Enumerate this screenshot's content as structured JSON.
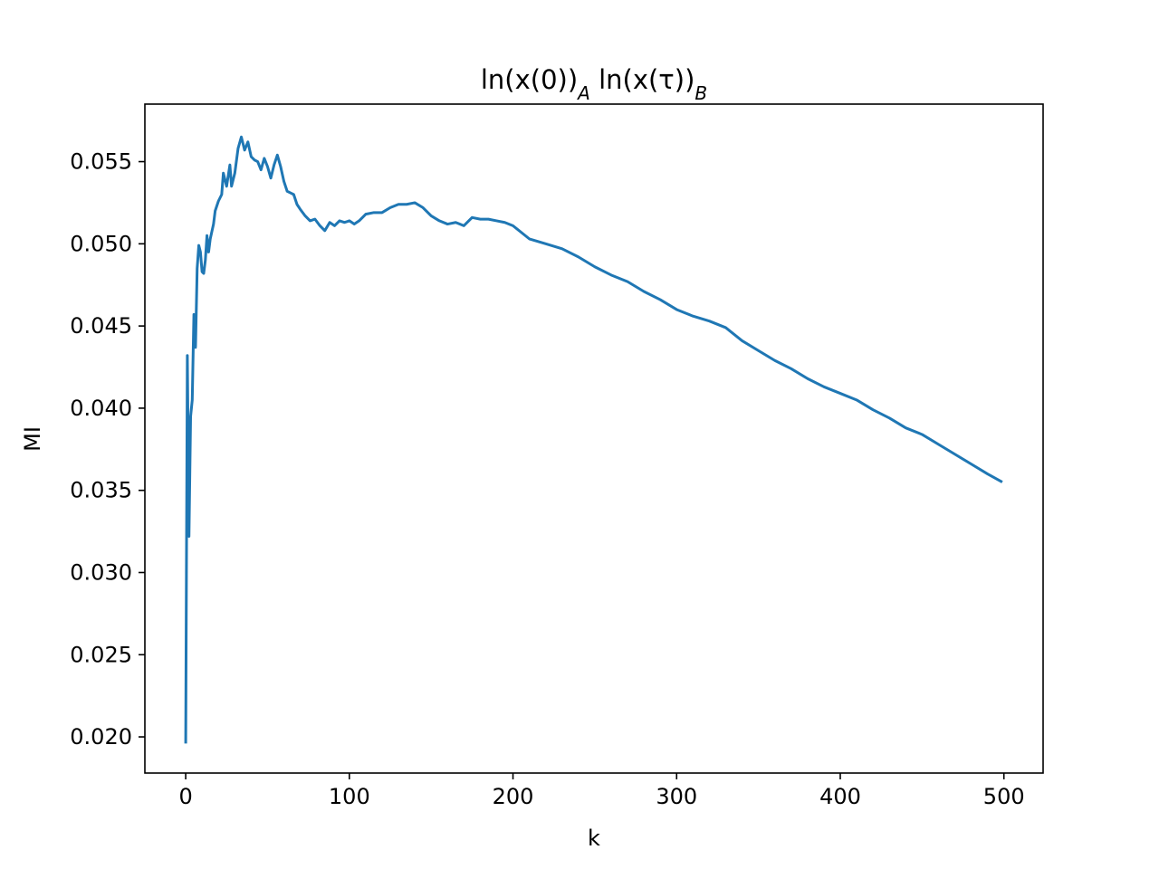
{
  "chart_data": {
    "type": "line",
    "title": [
      "ln(x(0))",
      "A",
      " ln(x(τ))",
      "B"
    ],
    "xlabel": "k",
    "ylabel": "MI",
    "color": "#1f77b4",
    "x": [
      0,
      1,
      2,
      3,
      4,
      5,
      6,
      7,
      8,
      9,
      10,
      11,
      12,
      13,
      14,
      15,
      17,
      18,
      20,
      22,
      23,
      25,
      27,
      28,
      30,
      32,
      34,
      36,
      38,
      40,
      42,
      44,
      46,
      48,
      50,
      52,
      54,
      56,
      58,
      60,
      62,
      64,
      66,
      68,
      70,
      73,
      76,
      79,
      82,
      85,
      88,
      91,
      94,
      97,
      100,
      103,
      106,
      110,
      115,
      120,
      125,
      130,
      135,
      140,
      145,
      150,
      155,
      160,
      165,
      170,
      175,
      180,
      185,
      190,
      195,
      200,
      205,
      210,
      220,
      230,
      240,
      250,
      260,
      270,
      280,
      290,
      300,
      310,
      320,
      330,
      340,
      350,
      360,
      370,
      380,
      390,
      400,
      410,
      420,
      430,
      440,
      450,
      460,
      470,
      480,
      490,
      499
    ],
    "values": [
      0.0196,
      0.0432,
      0.0322,
      0.0395,
      0.0405,
      0.0457,
      0.0437,
      0.0485,
      0.0499,
      0.0495,
      0.0483,
      0.0482,
      0.049,
      0.0505,
      0.0495,
      0.0503,
      0.0512,
      0.052,
      0.0526,
      0.053,
      0.0543,
      0.0535,
      0.0548,
      0.0535,
      0.0543,
      0.0558,
      0.0565,
      0.0557,
      0.0562,
      0.0553,
      0.0551,
      0.055,
      0.0545,
      0.0552,
      0.0547,
      0.054,
      0.0548,
      0.0554,
      0.0547,
      0.0538,
      0.0532,
      0.0531,
      0.053,
      0.0524,
      0.0521,
      0.0517,
      0.0514,
      0.0515,
      0.0511,
      0.0508,
      0.0513,
      0.0511,
      0.0514,
      0.0513,
      0.0514,
      0.0512,
      0.0514,
      0.0518,
      0.0519,
      0.0519,
      0.0522,
      0.0524,
      0.0524,
      0.0525,
      0.0522,
      0.0517,
      0.0514,
      0.0512,
      0.0513,
      0.0511,
      0.0516,
      0.0515,
      0.0515,
      0.0514,
      0.0513,
      0.0511,
      0.0507,
      0.0503,
      0.05,
      0.0497,
      0.0492,
      0.0486,
      0.0481,
      0.0477,
      0.0471,
      0.0466,
      0.046,
      0.0456,
      0.0453,
      0.0449,
      0.0441,
      0.0435,
      0.0429,
      0.0424,
      0.0418,
      0.0413,
      0.0409,
      0.0405,
      0.0399,
      0.0394,
      0.0388,
      0.0384,
      0.0378,
      0.0372,
      0.0366,
      0.036,
      0.0355
    ],
    "xlim": [
      -24.95,
      523.95
    ],
    "ylim": [
      0.0178,
      0.0585
    ],
    "xticks": [
      0,
      100,
      200,
      300,
      400,
      500
    ],
    "yticks": [
      {
        "value": 0.02,
        "label": "0.020"
      },
      0.025,
      {
        "value": 0.03,
        "label": "0.030"
      },
      0.035,
      {
        "value": 0.04,
        "label": "0.040"
      },
      0.045,
      {
        "value": 0.05,
        "label": "0.050"
      },
      0.055
    ]
  }
}
